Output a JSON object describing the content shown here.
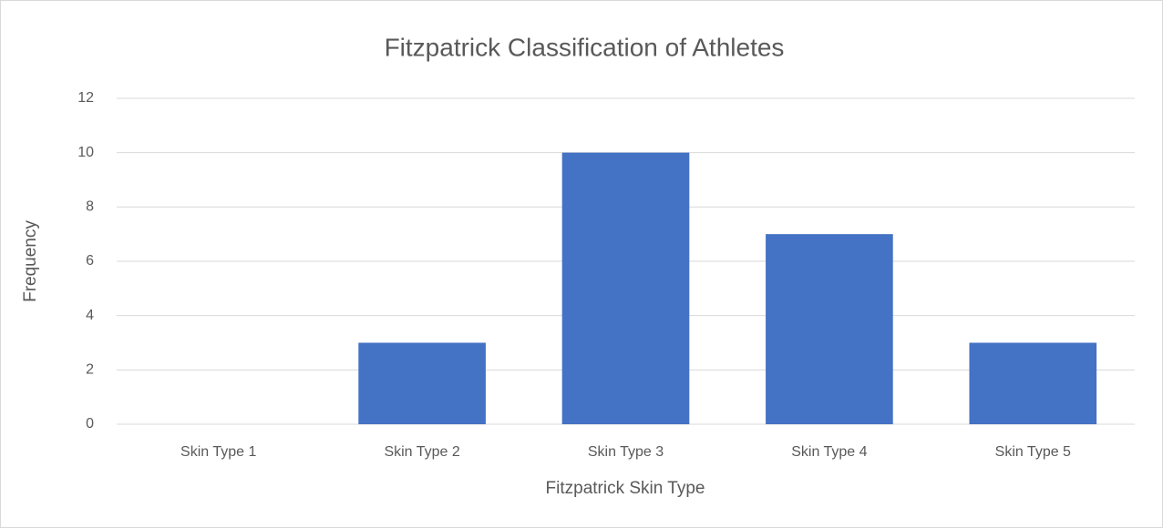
{
  "chart_data": {
    "type": "bar",
    "title": "Fitzpatrick Classification of Athletes",
    "x_label": "Fitzpatrick Skin Type",
    "y_label": "Frequency",
    "categories": [
      "Skin Type 1",
      "Skin Type 2",
      "Skin Type 3",
      "Skin Type 4",
      "Skin Type 5"
    ],
    "values": [
      0,
      3,
      10,
      7,
      3
    ],
    "color": "#4472c4",
    "ylim": [
      0,
      12
    ],
    "yticks": [
      0,
      2,
      4,
      6,
      8,
      10,
      12
    ],
    "grid": true
  }
}
